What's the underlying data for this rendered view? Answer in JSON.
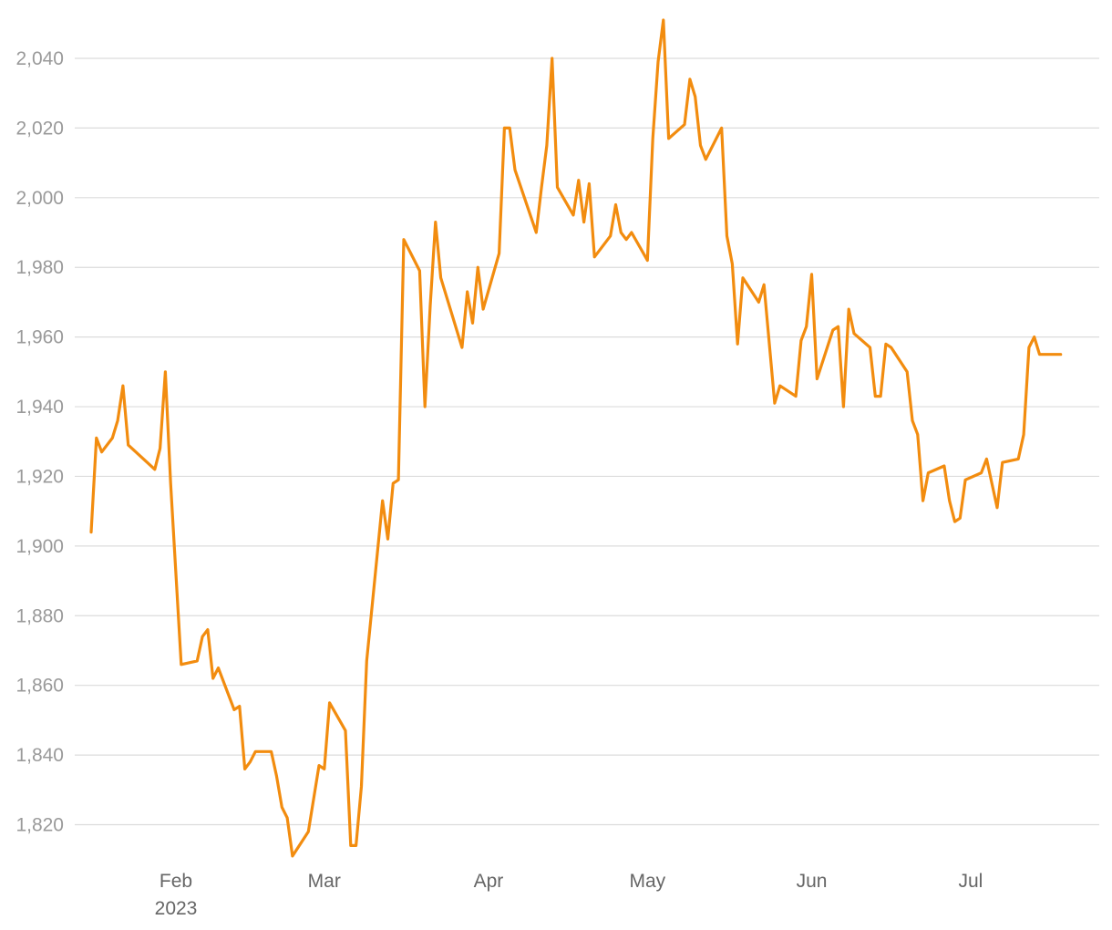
{
  "chart_data": {
    "type": "line",
    "title": "",
    "xlabel": "",
    "ylabel": "",
    "ylim": [
      1810,
      2052
    ],
    "xlim": [
      "2023-01-16",
      "2023-07-22"
    ],
    "grid": "horizontal",
    "y_ticks": [
      "1,820",
      "1,840",
      "1,860",
      "1,880",
      "1,900",
      "1,920",
      "1,940",
      "1,960",
      "1,980",
      "2,000",
      "2,020",
      "2,040"
    ],
    "x_ticks": [
      {
        "date": "2023-02-01",
        "label": "Feb",
        "sublabel": "2023"
      },
      {
        "date": "2023-03-01",
        "label": "Mar",
        "sublabel": ""
      },
      {
        "date": "2023-04-01",
        "label": "Apr",
        "sublabel": ""
      },
      {
        "date": "2023-05-01",
        "label": "May",
        "sublabel": ""
      },
      {
        "date": "2023-06-01",
        "label": "Jun",
        "sublabel": ""
      },
      {
        "date": "2023-07-01",
        "label": "Jul",
        "sublabel": ""
      }
    ],
    "series": [
      {
        "color": "#f28c0f",
        "points": [
          [
            "2023-01-16",
            1904
          ],
          [
            "2023-01-17",
            1931
          ],
          [
            "2023-01-18",
            1927
          ],
          [
            "2023-01-20",
            1931
          ],
          [
            "2023-01-21",
            1936
          ],
          [
            "2023-01-22",
            1946
          ],
          [
            "2023-01-23",
            1929
          ],
          [
            "2023-01-28",
            1922
          ],
          [
            "2023-01-29",
            1928
          ],
          [
            "2023-01-30",
            1950
          ],
          [
            "2023-01-31",
            1918
          ],
          [
            "2023-02-02",
            1866
          ],
          [
            "2023-02-05",
            1867
          ],
          [
            "2023-02-06",
            1874
          ],
          [
            "2023-02-07",
            1876
          ],
          [
            "2023-02-08",
            1862
          ],
          [
            "2023-02-09",
            1865
          ],
          [
            "2023-02-12",
            1853
          ],
          [
            "2023-02-13",
            1854
          ],
          [
            "2023-02-14",
            1836
          ],
          [
            "2023-02-15",
            1838
          ],
          [
            "2023-02-16",
            1841
          ],
          [
            "2023-02-19",
            1841
          ],
          [
            "2023-02-20",
            1834
          ],
          [
            "2023-02-21",
            1825
          ],
          [
            "2023-02-22",
            1822
          ],
          [
            "2023-02-23",
            1811
          ],
          [
            "2023-02-26",
            1818
          ],
          [
            "2023-02-28",
            1837
          ],
          [
            "2023-03-01",
            1836
          ],
          [
            "2023-03-02",
            1855
          ],
          [
            "2023-03-05",
            1847
          ],
          [
            "2023-03-06",
            1814
          ],
          [
            "2023-03-07",
            1814
          ],
          [
            "2023-03-08",
            1831
          ],
          [
            "2023-03-09",
            1867
          ],
          [
            "2023-03-12",
            1913
          ],
          [
            "2023-03-13",
            1902
          ],
          [
            "2023-03-14",
            1918
          ],
          [
            "2023-03-15",
            1919
          ],
          [
            "2023-03-16",
            1988
          ],
          [
            "2023-03-19",
            1979
          ],
          [
            "2023-03-20",
            1940
          ],
          [
            "2023-03-21",
            1969
          ],
          [
            "2023-03-22",
            1993
          ],
          [
            "2023-03-23",
            1977
          ],
          [
            "2023-03-27",
            1957
          ],
          [
            "2023-03-28",
            1973
          ],
          [
            "2023-03-29",
            1964
          ],
          [
            "2023-03-30",
            1980
          ],
          [
            "2023-03-31",
            1968
          ],
          [
            "2023-04-03",
            1984
          ],
          [
            "2023-04-04",
            2020
          ],
          [
            "2023-04-05",
            2020
          ],
          [
            "2023-04-06",
            2008
          ],
          [
            "2023-04-10",
            1990
          ],
          [
            "2023-04-11",
            2003
          ],
          [
            "2023-04-12",
            2015
          ],
          [
            "2023-04-13",
            2040
          ],
          [
            "2023-04-14",
            2003
          ],
          [
            "2023-04-17",
            1995
          ],
          [
            "2023-04-18",
            2005
          ],
          [
            "2023-04-19",
            1993
          ],
          [
            "2023-04-20",
            2004
          ],
          [
            "2023-04-21",
            1983
          ],
          [
            "2023-04-24",
            1989
          ],
          [
            "2023-04-25",
            1998
          ],
          [
            "2023-04-26",
            1990
          ],
          [
            "2023-04-27",
            1988
          ],
          [
            "2023-04-28",
            1990
          ],
          [
            "2023-05-01",
            1982
          ],
          [
            "2023-05-02",
            2017
          ],
          [
            "2023-05-03",
            2039
          ],
          [
            "2023-05-04",
            2051
          ],
          [
            "2023-05-05",
            2017
          ],
          [
            "2023-05-08",
            2021
          ],
          [
            "2023-05-09",
            2034
          ],
          [
            "2023-05-10",
            2029
          ],
          [
            "2023-05-11",
            2015
          ],
          [
            "2023-05-12",
            2011
          ],
          [
            "2023-05-15",
            2020
          ],
          [
            "2023-05-16",
            1989
          ],
          [
            "2023-05-17",
            1981
          ],
          [
            "2023-05-18",
            1958
          ],
          [
            "2023-05-19",
            1977
          ],
          [
            "2023-05-22",
            1970
          ],
          [
            "2023-05-23",
            1975
          ],
          [
            "2023-05-25",
            1941
          ],
          [
            "2023-05-26",
            1946
          ],
          [
            "2023-05-29",
            1943
          ],
          [
            "2023-05-30",
            1959
          ],
          [
            "2023-05-31",
            1963
          ],
          [
            "2023-06-01",
            1978
          ],
          [
            "2023-06-02",
            1948
          ],
          [
            "2023-06-05",
            1962
          ],
          [
            "2023-06-06",
            1963
          ],
          [
            "2023-06-07",
            1940
          ],
          [
            "2023-06-08",
            1968
          ],
          [
            "2023-06-09",
            1961
          ],
          [
            "2023-06-12",
            1957
          ],
          [
            "2023-06-13",
            1943
          ],
          [
            "2023-06-14",
            1943
          ],
          [
            "2023-06-15",
            1958
          ],
          [
            "2023-06-16",
            1957
          ],
          [
            "2023-06-19",
            1950
          ],
          [
            "2023-06-20",
            1936
          ],
          [
            "2023-06-21",
            1932
          ],
          [
            "2023-06-22",
            1913
          ],
          [
            "2023-06-23",
            1921
          ],
          [
            "2023-06-26",
            1923
          ],
          [
            "2023-06-27",
            1913
          ],
          [
            "2023-06-28",
            1907
          ],
          [
            "2023-06-29",
            1908
          ],
          [
            "2023-06-30",
            1919
          ],
          [
            "2023-07-03",
            1921
          ],
          [
            "2023-07-04",
            1925
          ],
          [
            "2023-07-06",
            1911
          ],
          [
            "2023-07-07",
            1924
          ],
          [
            "2023-07-10",
            1925
          ],
          [
            "2023-07-11",
            1932
          ],
          [
            "2023-07-12",
            1957
          ],
          [
            "2023-07-13",
            1960
          ],
          [
            "2023-07-14",
            1955
          ],
          [
            "2023-07-17",
            1955
          ],
          [
            "2023-07-18",
            1955
          ]
        ]
      }
    ]
  }
}
